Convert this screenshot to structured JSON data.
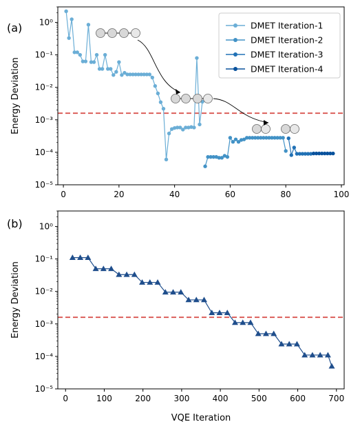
{
  "chart_data": [
    {
      "type": "line",
      "panel_label": "(a)",
      "xlabel": "",
      "ylabel": "Energy Deviation",
      "xlim": [
        -2,
        101
      ],
      "ylim": [
        1e-05,
        3
      ],
      "yscale": "log",
      "x_ticks": [
        "0",
        "20",
        "40",
        "60",
        "80",
        "100"
      ],
      "x_tick_values": [
        0,
        20,
        40,
        60,
        80,
        100
      ],
      "y_ticks": [
        "10⁰",
        "10⁻¹",
        "10⁻²",
        "10⁻³",
        "10⁻⁴",
        "10⁻⁵"
      ],
      "y_tick_values": [
        1,
        0.1,
        0.01,
        0.001,
        0.0001,
        1e-05
      ],
      "threshold": 0.0016,
      "threshold_color": "#d9534f",
      "legend_position": "top-right",
      "series": [
        {
          "name": "DMET Iteration-1",
          "color": "#6baed6",
          "x": [
            1,
            2,
            3,
            4,
            5,
            6,
            7,
            8,
            9,
            10,
            11,
            12,
            13,
            14,
            15,
            16,
            17,
            18,
            19,
            20,
            21,
            22,
            23,
            24,
            25,
            26,
            27,
            28,
            29,
            30,
            31,
            32,
            33,
            34,
            35,
            36,
            37,
            38,
            39,
            40,
            41,
            42,
            43,
            44,
            45,
            46,
            47,
            48,
            49,
            50
          ],
          "y": [
            2.2,
            0.33,
            1.25,
            0.12,
            0.12,
            0.1,
            0.063,
            0.063,
            0.85,
            0.06,
            0.06,
            0.1,
            0.037,
            0.037,
            0.1,
            0.037,
            0.037,
            0.024,
            0.03,
            0.06,
            0.024,
            0.028,
            0.025,
            0.025,
            0.025,
            0.025,
            0.025,
            0.025,
            0.025,
            0.025,
            0.025,
            0.02,
            0.011,
            0.0065,
            0.0035,
            0.0022,
            6e-05,
            0.00038,
            0.00052,
            0.00056,
            0.00058,
            0.00058,
            0.0005,
            0.00058,
            0.00058,
            0.0006,
            0.00058,
            0.08,
            0.00072,
            0.0036
          ]
        },
        {
          "name": "DMET Iteration-2",
          "color": "#4292c6",
          "x": [
            51,
            52,
            53,
            54,
            55,
            56,
            57,
            58,
            59,
            60,
            61,
            62,
            63,
            64,
            65,
            66,
            67,
            68,
            69,
            70,
            71,
            72,
            73,
            74,
            75,
            76,
            77,
            78,
            79,
            80
          ],
          "y": [
            3.7e-05,
            7.2e-05,
            7.2e-05,
            7.2e-05,
            7.2e-05,
            6.8e-05,
            6.8e-05,
            7.8e-05,
            7.2e-05,
            0.00028,
            0.00021,
            0.00025,
            0.00021,
            0.00024,
            0.00025,
            0.00028,
            0.00028,
            0.00028,
            0.00028,
            0.00028,
            0.00028,
            0.00028,
            0.00028,
            0.00028,
            0.00028,
            0.00028,
            0.00028,
            0.00028,
            0.00028,
            0.00011
          ]
        },
        {
          "name": "DMET Iteration-3",
          "color": "#2171b5",
          "x": [
            81,
            82,
            83,
            84,
            85,
            86,
            87,
            88,
            89
          ],
          "y": [
            0.00027,
            8.2e-05,
            0.00014,
            9e-05,
            9e-05,
            9e-05,
            9e-05,
            9e-05,
            9e-05
          ]
        },
        {
          "name": "DMET Iteration-4",
          "color": "#08519c",
          "x": [
            90,
            91,
            92,
            93,
            94,
            95,
            96,
            97
          ],
          "y": [
            9.2e-05,
            9.2e-05,
            9.2e-05,
            9.2e-05,
            9.2e-05,
            9.2e-05,
            9.2e-05,
            9.2e-05
          ]
        }
      ]
    },
    {
      "type": "line",
      "panel_label": "(b)",
      "xlabel": "VQE Iteration",
      "ylabel": "Energy Deviation",
      "xlim": [
        -20,
        720
      ],
      "ylim": [
        1e-05,
        3
      ],
      "yscale": "log",
      "x_ticks": [
        "0",
        "100",
        "200",
        "300",
        "400",
        "500",
        "600",
        "700"
      ],
      "x_tick_values": [
        0,
        100,
        200,
        300,
        400,
        500,
        600,
        700
      ],
      "y_ticks": [
        "10⁰",
        "10⁻¹",
        "10⁻²",
        "10⁻³",
        "10⁻⁴",
        "10⁻⁵"
      ],
      "y_tick_values": [
        1,
        0.1,
        0.01,
        0.001,
        0.0001,
        1e-05
      ],
      "threshold": 0.0016,
      "threshold_color": "#d9534f",
      "series": [
        {
          "name": "",
          "color": "#1f4e8c",
          "marker": "triangle",
          "x": [
            18,
            38,
            58,
            78,
            98,
            118,
            138,
            158,
            178,
            198,
            218,
            238,
            258,
            278,
            298,
            318,
            338,
            358,
            378,
            398,
            418,
            438,
            458,
            478,
            498,
            518,
            538,
            558,
            578,
            598,
            618,
            638,
            658,
            678,
            688
          ],
          "y": [
            0.11,
            0.11,
            0.11,
            0.05,
            0.05,
            0.05,
            0.033,
            0.033,
            0.033,
            0.019,
            0.019,
            0.019,
            0.0095,
            0.0095,
            0.0095,
            0.0055,
            0.0055,
            0.0055,
            0.0022,
            0.0022,
            0.0022,
            0.0011,
            0.0011,
            0.0011,
            0.0005,
            0.0005,
            0.0005,
            0.00024,
            0.00024,
            0.00024,
            0.00011,
            0.00011,
            0.00011,
            0.00011,
            5e-05
          ]
        }
      ]
    }
  ]
}
